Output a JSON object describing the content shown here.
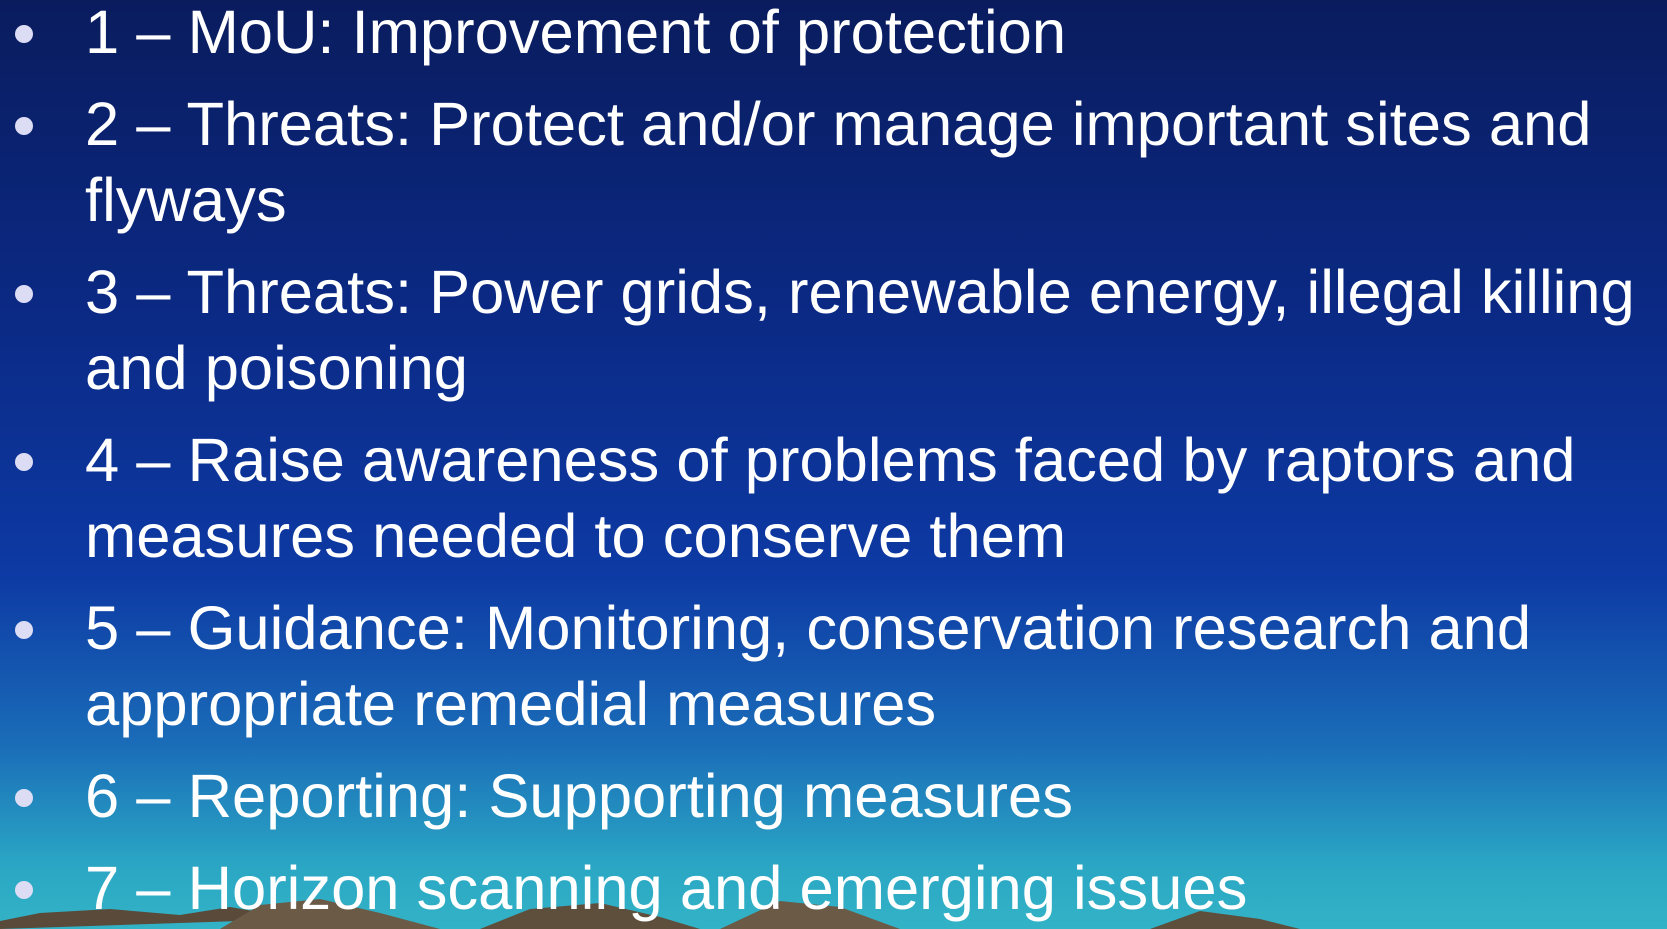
{
  "items": [
    "1 – MoU: Improvement of protection",
    "2 – Threats: Protect and/or manage important sites and flyways",
    "3 – Threats: Power grids, renewable energy, illegal killing and poisoning",
    "4 – Raise awareness of problems faced by raptors and measures needed to conserve them",
    "5 – Guidance: Monitoring, conservation research and appropriate remedial measures",
    "6 – Reporting: Supporting measures",
    "7 – Horizon scanning and emerging issues"
  ]
}
